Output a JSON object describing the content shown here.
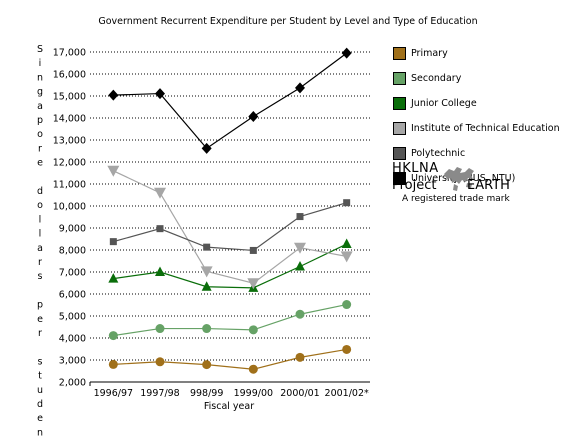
{
  "chart_data": {
    "type": "line",
    "title": "Government Recurrent Expenditure per Student by Level and Type of Education",
    "xlabel": "Fiscal year",
    "ylabel": "Singapore dollars per student",
    "ylim": [
      2000,
      17000
    ],
    "yticks": [
      "2,000",
      "3,000",
      "4,000",
      "5,000",
      "6,000",
      "7,000",
      "8,000",
      "9,000",
      "10,000",
      "11,000",
      "12,000",
      "13,000",
      "14,000",
      "15,000",
      "16,000",
      "17,000"
    ],
    "categories": [
      "1996/97",
      "1997/98",
      "998/99",
      "1999/00",
      "2000/01",
      "2001/02*"
    ],
    "grid": true,
    "legend_position": "right",
    "series": [
      {
        "name": "Primary",
        "color": "#a0701a",
        "marker": "circle",
        "values": [
          2800,
          2920,
          2790,
          2580,
          3120,
          3480
        ]
      },
      {
        "name": "Secondary",
        "color": "#66a266",
        "marker": "circle",
        "values": [
          4110,
          4430,
          4430,
          4370,
          5080,
          5520
        ]
      },
      {
        "name": "Junior College",
        "color": "#0a6e0a",
        "marker": "triangle",
        "values": [
          6700,
          7000,
          6330,
          6280,
          7250,
          8270
        ]
      },
      {
        "name": "Institute of Technical Education",
        "color": "#a6a6a6",
        "marker": "triangle-down",
        "values": [
          11600,
          10600,
          7030,
          6490,
          8100,
          7710
        ]
      },
      {
        "name": "Polytechnic",
        "color": "#555555",
        "marker": "square",
        "values": [
          8380,
          8970,
          8130,
          7980,
          9520,
          10150
        ]
      },
      {
        "name": "University (NUS, NTU)",
        "color": "#000000",
        "marker": "diamond",
        "values": [
          15040,
          15110,
          12620,
          14070,
          15370,
          16950
        ]
      }
    ]
  },
  "brand": {
    "line1": "HKLNA",
    "line2a": "Project",
    "line2b": "EARTH",
    "line3": "A registered trade mark",
    "logo_icon": "world-map-icon"
  }
}
